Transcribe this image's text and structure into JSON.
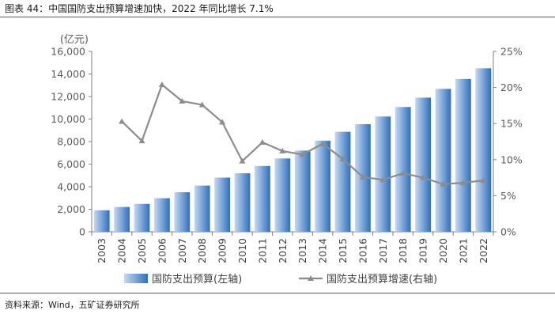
{
  "title": "图表 44：中国国防支出预算增速加快，2022 年同比增长 7.1%",
  "source": "资料来源：Wind，五矿证券研究所",
  "colors": {
    "bar_light": "#c5d9f1",
    "bar_dark": "#2e6fbf",
    "line": "#8c8c8c",
    "axis": "#7f7f7f"
  },
  "chart_data": {
    "type": "bar",
    "categories": [
      "2003",
      "2004",
      "2005",
      "2006",
      "2007",
      "2008",
      "2009",
      "2010",
      "2011",
      "2012",
      "2013",
      "2014",
      "2015",
      "2016",
      "2017",
      "2018",
      "2019",
      "2020",
      "2021",
      "2022"
    ],
    "unit_label": "(亿元)",
    "y_left": {
      "ylim": [
        0,
        16000
      ],
      "ticks": [
        "0",
        "2,000",
        "4,000",
        "6,000",
        "8,000",
        "10,000",
        "12,000",
        "14,000",
        "16,000"
      ]
    },
    "y_right": {
      "ylim": [
        0,
        25
      ],
      "ticks": [
        "0%",
        "5%",
        "10%",
        "15%",
        "20%",
        "25%"
      ]
    },
    "series": [
      {
        "name": "国防支出预算(左轴)",
        "type": "bar",
        "axis": "left",
        "values": [
          1907,
          2200,
          2475,
          2979,
          3509,
          4099,
          4807,
          5191,
          5836,
          6503,
          7202,
          8082,
          8869,
          9544,
          10226,
          11070,
          11899,
          12680,
          13553,
          14504
        ]
      },
      {
        "name": "国防支出预算增速(右轴)",
        "type": "line",
        "axis": "right",
        "values": [
          null,
          15.3,
          12.6,
          20.4,
          18.1,
          17.6,
          15.2,
          9.8,
          12.4,
          11.2,
          10.7,
          12.2,
          10.1,
          7.6,
          7.2,
          8.1,
          7.5,
          6.6,
          6.8,
          7.1
        ]
      }
    ],
    "legend_position": "bottom",
    "grid": false
  }
}
